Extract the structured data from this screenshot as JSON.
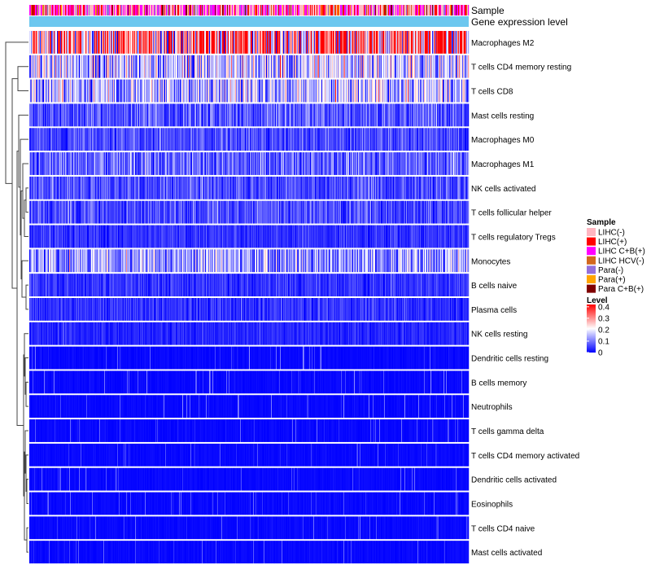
{
  "chart_data": {
    "type": "heatmap",
    "title": "",
    "column_annotations": [
      {
        "name": "Sample",
        "label": "Sample"
      },
      {
        "name": "Gene expression level",
        "label": "Gene expression level",
        "color": "#6cc7ef"
      }
    ],
    "rows": [
      {
        "label": "Macrophages M2",
        "mean": 0.3
      },
      {
        "label": "T cells CD4 memory resting",
        "mean": 0.16
      },
      {
        "label": "T cells CD8",
        "mean": 0.14
      },
      {
        "label": "Mast cells resting",
        "mean": 0.07
      },
      {
        "label": "Macrophages M0",
        "mean": 0.06
      },
      {
        "label": "Macrophages M1",
        "mean": 0.08
      },
      {
        "label": "NK cells activated",
        "mean": 0.06
      },
      {
        "label": "T cells follicular helper",
        "mean": 0.06
      },
      {
        "label": "T cells regulatory  Tregs",
        "mean": 0.04
      },
      {
        "label": "Monocytes",
        "mean": 0.12
      },
      {
        "label": "B cells naive",
        "mean": 0.04
      },
      {
        "label": "Plasma cells",
        "mean": 0.04
      },
      {
        "label": "NK cells resting",
        "mean": 0.03
      },
      {
        "label": "Dendritic cells resting",
        "mean": 0.02
      },
      {
        "label": "B cells memory",
        "mean": 0.02
      },
      {
        "label": "Neutrophils",
        "mean": 0.02
      },
      {
        "label": "T cells gamma delta",
        "mean": 0.01
      },
      {
        "label": "T cells CD4 memory activated",
        "mean": 0.01
      },
      {
        "label": "Dendritic cells activated",
        "mean": 0.01
      },
      {
        "label": "Eosinophils",
        "mean": 0.01
      },
      {
        "label": "T cells CD4 naive",
        "mean": 0.01
      },
      {
        "label": "Mast cells activated",
        "mean": 0.01
      }
    ],
    "n_columns": 540,
    "sample_group_weights": [
      0.38,
      0.15,
      0.3,
      0.04,
      0.05,
      0.04,
      0.04
    ],
    "legend_sample": {
      "title": "Sample",
      "entries": [
        {
          "label": "LIHC(-)",
          "color": "#ffb6c1"
        },
        {
          "label": "LIHC(+)",
          "color": "#ff0000"
        },
        {
          "label": "LIHC C+B(+)",
          "color": "#ff00ff"
        },
        {
          "label": "LIHC HCV(-)",
          "color": "#d2691e"
        },
        {
          "label": "Para(-)",
          "color": "#9370db"
        },
        {
          "label": "Para(+)",
          "color": "#ffa500"
        },
        {
          "label": "Para C+B(+)",
          "color": "#800000"
        }
      ]
    },
    "legend_level": {
      "title": "Level",
      "ticks": [
        "0.4",
        "0.3",
        "0.2",
        "0.1",
        "0"
      ],
      "tick_values": [
        0.4,
        0.3,
        0.2,
        0.1,
        0
      ],
      "range": [
        0,
        0.42
      ],
      "colors": [
        "#0000ff",
        "#ffffff",
        "#ff0000"
      ]
    },
    "dendrogram": "row clustering tree (left side)"
  }
}
